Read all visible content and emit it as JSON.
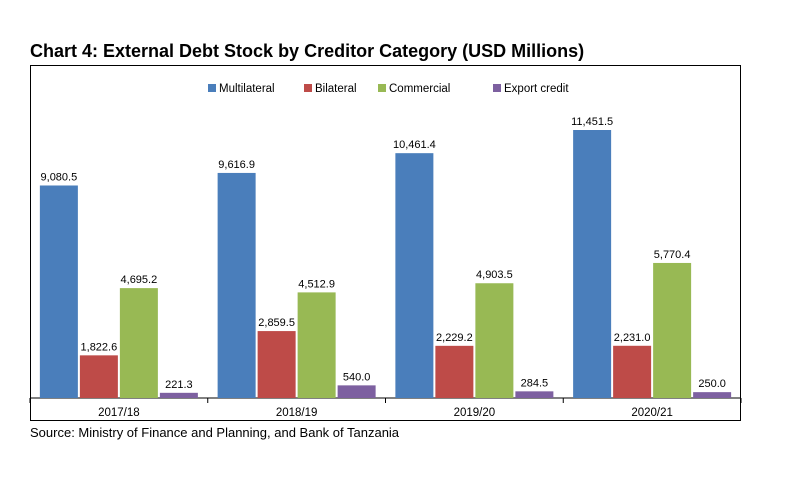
{
  "page": {
    "title": "Chart 4: External Debt Stock by Creditor Category (USD Millions)",
    "source": "Source: Ministry of Finance and Planning, and Bank of Tanzania"
  },
  "chart_data": {
    "type": "bar",
    "title": "Chart 4: External Debt Stock by Creditor Category (USD Millions)",
    "xlabel": "",
    "ylabel": "",
    "ylim": [
      0,
      12000
    ],
    "grid": false,
    "legend_position": "top-center",
    "categories": [
      "2017/18",
      "2018/19",
      "2019/20",
      "2020/21"
    ],
    "series": [
      {
        "name": "Multilateral",
        "color": "#4a7ebb",
        "values": [
          9080.5,
          9616.9,
          10461.4,
          11451.5
        ],
        "labels": [
          "9,080.5",
          "9,616.9",
          "10,461.4",
          "11,451.5"
        ]
      },
      {
        "name": "Bilateral",
        "color": "#be4b48",
        "values": [
          1822.6,
          2859.5,
          2229.2,
          2231.0
        ],
        "labels": [
          "1,822.6",
          "2,859.5",
          "2,229.2",
          "2,231.0"
        ]
      },
      {
        "name": "Commercial",
        "color": "#98b954",
        "values": [
          4695.2,
          4512.9,
          4903.5,
          5770.4
        ],
        "labels": [
          "4,695.2",
          "4,512.9",
          "4,903.5",
          "5,770.4"
        ]
      },
      {
        "name": "Export credit",
        "color": "#7d60a0",
        "values": [
          221.3,
          540.0,
          284.5,
          250.0
        ],
        "labels": [
          "221.3",
          "540.0",
          "284.5",
          "250.0"
        ]
      }
    ]
  }
}
